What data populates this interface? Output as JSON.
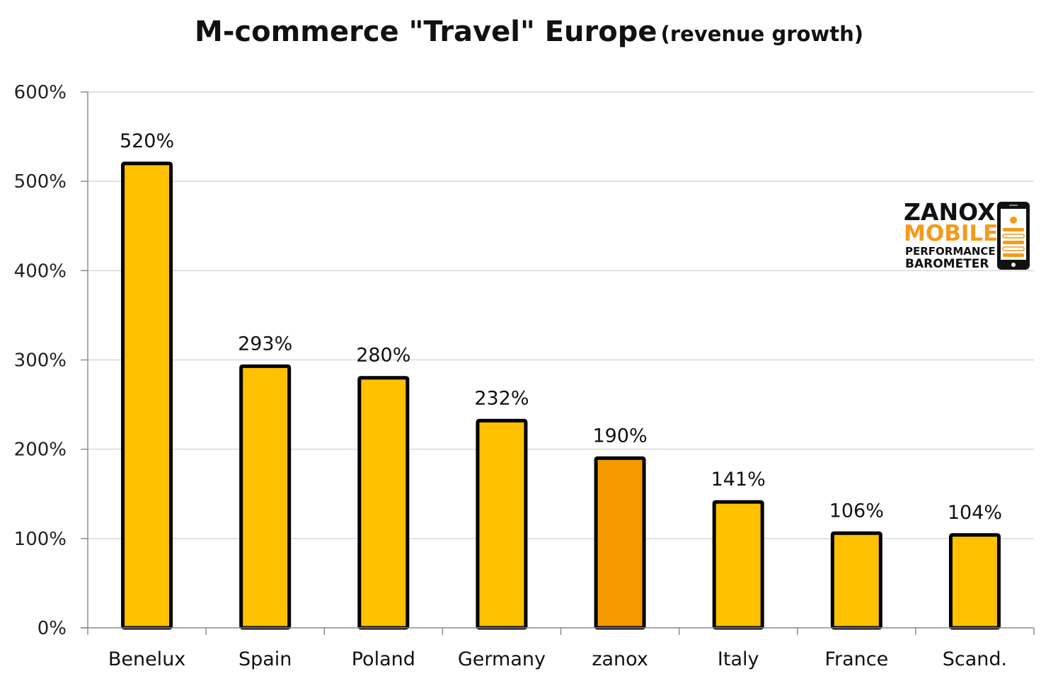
{
  "chart_data": {
    "type": "bar",
    "title": "M-commerce \"Travel\" Europe",
    "subtitle": "(revenue growth)",
    "categories": [
      "Benelux",
      "Spain",
      "Poland",
      "Germany",
      "zanox",
      "Italy",
      "France",
      "Scand."
    ],
    "values": [
      520,
      293,
      280,
      232,
      190,
      141,
      106,
      104
    ],
    "data_labels": [
      "520%",
      "293%",
      "280%",
      "232%",
      "190%",
      "141%",
      "106%",
      "104%"
    ],
    "y_ticks": [
      0,
      100,
      200,
      300,
      400,
      500,
      600
    ],
    "y_tick_labels": [
      "0%",
      "100%",
      "200%",
      "300%",
      "400%",
      "500%",
      "600%"
    ],
    "ylim": [
      0,
      600
    ],
    "grid": true,
    "highlight_category": "zanox",
    "colors": {
      "bar": "#ffc000",
      "highlight": "#f59a00",
      "outline": "#000000",
      "grid": "#d9d9d9"
    }
  },
  "logo": {
    "line1": "ZANOX",
    "line2": "MOBILE",
    "line3": "PERFORMANCE",
    "line4": "BAROMETER",
    "accent": "#f59a1b",
    "icon": "phone-icon"
  }
}
